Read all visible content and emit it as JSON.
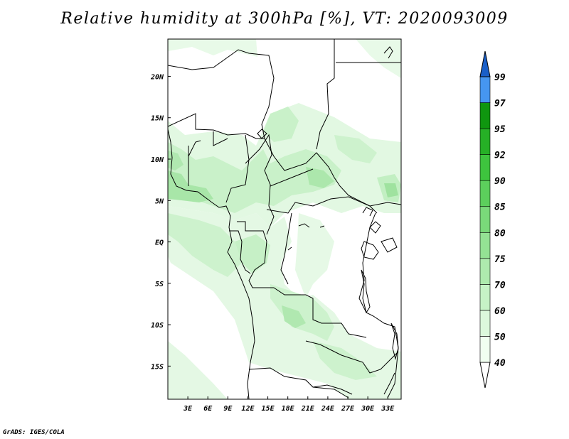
{
  "title": "Relative humidity at 300hPa [%], VT: 2020093009",
  "credit": "GrADS: IGES/COLA",
  "map": {
    "lon_range": [
      0,
      35
    ],
    "lat_range": [
      -19,
      24.5
    ],
    "lon_ticks": [
      {
        "value": 3,
        "label": "3E"
      },
      {
        "value": 6,
        "label": "6E"
      },
      {
        "value": 9,
        "label": "9E"
      },
      {
        "value": 12,
        "label": "12E"
      },
      {
        "value": 15,
        "label": "15E"
      },
      {
        "value": 18,
        "label": "18E"
      },
      {
        "value": 21,
        "label": "21E"
      },
      {
        "value": 24,
        "label": "24E"
      },
      {
        "value": 27,
        "label": "27E"
      },
      {
        "value": 30,
        "label": "30E"
      },
      {
        "value": 33,
        "label": "33E"
      }
    ],
    "lat_ticks": [
      {
        "value": 20,
        "label": "20N"
      },
      {
        "value": 15,
        "label": "15N"
      },
      {
        "value": 10,
        "label": "10N"
      },
      {
        "value": 5,
        "label": "5N"
      },
      {
        "value": 0,
        "label": "EQ"
      },
      {
        "value": -5,
        "label": "5S"
      },
      {
        "value": -10,
        "label": "10S"
      },
      {
        "value": -15,
        "label": "15S"
      }
    ]
  },
  "colorbar": {
    "levels": [
      "40",
      "50",
      "60",
      "70",
      "75",
      "80",
      "85",
      "90",
      "92",
      "95",
      "97",
      "99"
    ],
    "colors": [
      "#f0fff0",
      "#dcf8dc",
      "#c6f2c6",
      "#aeeaae",
      "#94e294",
      "#7ad97a",
      "#5ccf5c",
      "#3ec43e",
      "#26b026",
      "#0f960f",
      "#4696f0",
      "#2a78dc",
      "#1a5fc8"
    ],
    "under_color": "#ffffff",
    "over_color": "#1a5fc8"
  },
  "colors": {
    "land_lines": "#000000",
    "humidity_light": "#e6fae6",
    "humidity_mid": "#c8f0c8",
    "humidity_strong": "#a6e4a6"
  }
}
